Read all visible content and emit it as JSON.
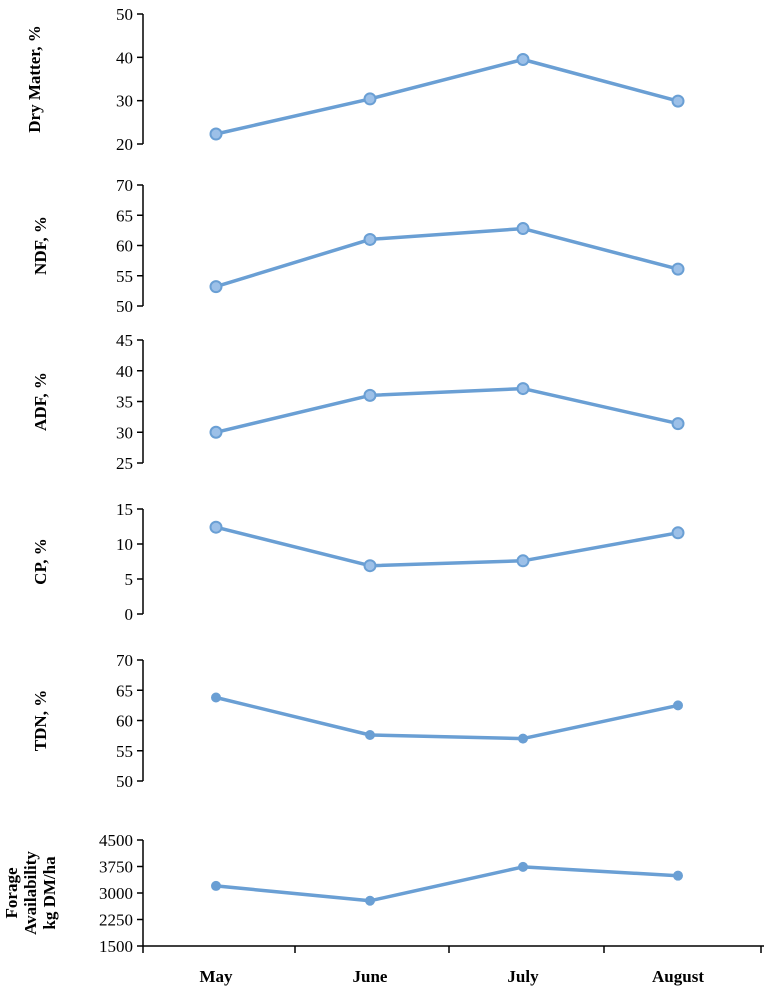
{
  "colors": {
    "series": "#6a9fd4",
    "marker_fill": "#9cc0e8",
    "marker_stroke": "#6a9fd4"
  },
  "chart_data": {
    "type": "line",
    "categories": [
      "May",
      "June",
      "July",
      "August"
    ],
    "panels": [
      {
        "ylabel_lines": [
          "Dry Matter, %"
        ],
        "ylim": [
          20,
          50
        ],
        "yticks": [
          20,
          30,
          40,
          50
        ],
        "values": [
          22.3,
          30.4,
          39.5,
          29.9
        ],
        "marker": "ring"
      },
      {
        "ylabel_lines": [
          "NDF, %"
        ],
        "ylim": [
          50,
          70
        ],
        "yticks": [
          50,
          55,
          60,
          65,
          70
        ],
        "values": [
          53.2,
          61.0,
          62.8,
          56.1
        ],
        "marker": "ring"
      },
      {
        "ylabel_lines": [
          "ADF, %"
        ],
        "ylim": [
          25,
          45
        ],
        "yticks": [
          25,
          30,
          35,
          40,
          45
        ],
        "values": [
          30.0,
          36.0,
          37.1,
          31.4
        ],
        "marker": "ring"
      },
      {
        "ylabel_lines": [
          "CP, %"
        ],
        "ylim": [
          0,
          15
        ],
        "yticks": [
          0,
          5,
          10,
          15
        ],
        "values": [
          12.4,
          6.9,
          7.6,
          11.6
        ],
        "marker": "ring"
      },
      {
        "ylabel_lines": [
          "TDN, %"
        ],
        "ylim": [
          50,
          70
        ],
        "yticks": [
          50,
          55,
          60,
          65,
          70
        ],
        "values": [
          63.8,
          57.6,
          57.0,
          62.5
        ],
        "marker": "dot"
      },
      {
        "ylabel_lines": [
          "Forage",
          "Availability",
          "kg DM/ha"
        ],
        "ylim": [
          1500,
          4500
        ],
        "yticks": [
          1500,
          2250,
          3000,
          3750,
          4500
        ],
        "values": [
          3200,
          2780,
          3740,
          3490
        ],
        "marker": "dot"
      }
    ]
  }
}
